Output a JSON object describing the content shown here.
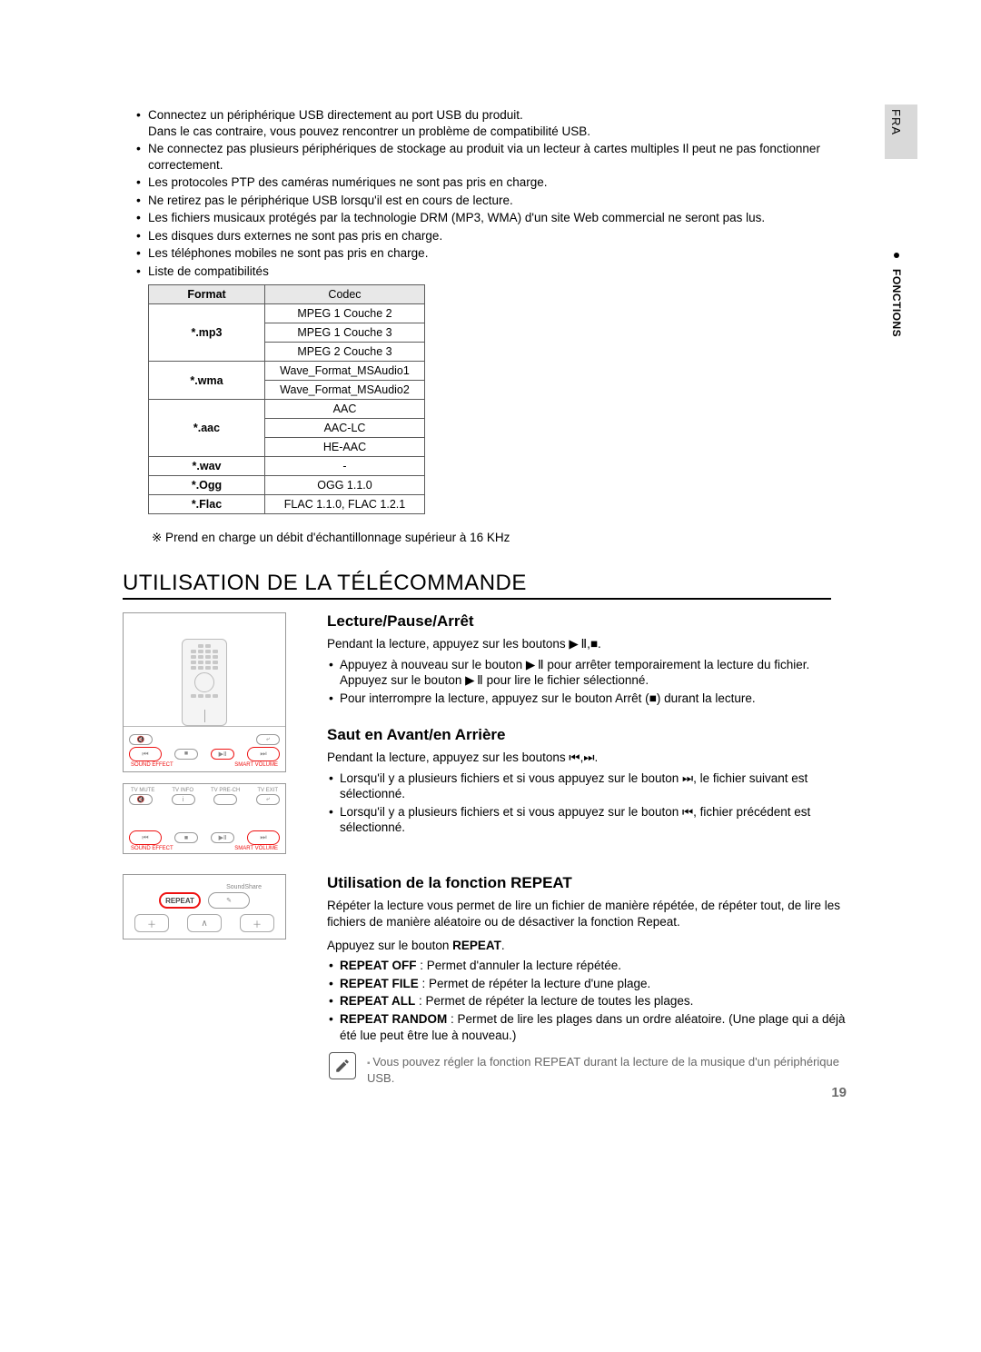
{
  "side": {
    "lang": "FRA",
    "section": "FONCTIONS"
  },
  "top_bullets": [
    "Connectez un périphérique USB directement au port USB du produit.\nDans le cas contraire, vous pouvez rencontrer un problème de compatibilité USB.",
    "Ne connectez pas plusieurs périphériques de stockage au produit via un lecteur à cartes multiples Il peut ne pas fonctionner correctement.",
    "Les protocoles PTP des caméras numériques ne sont pas pris en charge.",
    "Ne retirez pas le périphérique USB lorsqu'il est en cours de lecture.",
    "Les fichiers musicaux protégés par la technologie DRM (MP3, WMA) d'un site Web commercial ne seront pas lus.",
    "Les disques durs externes ne sont pas pris en charge.",
    "Les téléphones mobiles ne sont pas pris en charge.",
    "Liste de compatibilités"
  ],
  "table": {
    "headers": {
      "format": "Format",
      "codec": "Codec"
    },
    "rows": [
      {
        "format": "*.mp3",
        "codecs": [
          "MPEG 1 Couche 2",
          "MPEG 1 Couche 3",
          "MPEG 2 Couche 3"
        ]
      },
      {
        "format": "*.wma",
        "codecs": [
          "Wave_Format_MSAudio1",
          "Wave_Format_MSAudio2"
        ]
      },
      {
        "format": "*.aac",
        "codecs": [
          "AAC",
          "AAC-LC",
          "HE-AAC"
        ]
      },
      {
        "format": "*.wav",
        "codecs": [
          "-"
        ]
      },
      {
        "format": "*.Ogg",
        "codecs": [
          "OGG 1.1.0"
        ]
      },
      {
        "format": "*.Flac",
        "codecs": [
          "FLAC 1.1.0, FLAC 1.2.1"
        ]
      }
    ]
  },
  "footnote": "※ Prend en charge un débit d'échantillonnage supérieur à 16 KHz",
  "h1": "UTILISATION DE LA TÉLÉCOMMANDE",
  "zoom_labels": {
    "left": "SOUND EFFECT",
    "right": "SMART VOLUME"
  },
  "tv_labels": {
    "a": "TV MUTE",
    "b": "TV INFO",
    "c": "TV PRE-CH",
    "d": "TV EXIT"
  },
  "repeat_img": {
    "soundshare": "SoundShare",
    "repeat": "REPEAT"
  },
  "sect1": {
    "title": "Lecture/Pause/Arrêt",
    "lead": "Pendant la lecture, appuyez sur les boutons ▶ Ⅱ,■.",
    "items": [
      "Appuyez à nouveau sur le bouton ▶ Ⅱ pour arrêter temporairement la lecture du fichier.\nAppuyez sur le bouton ▶ Ⅱ pour lire le fichier sélectionné.",
      "Pour interrompre la lecture, appuyez sur le bouton Arrêt (■) durant la lecture."
    ]
  },
  "sect2": {
    "title": "Saut en Avant/en Arrière",
    "lead": "Pendant la lecture, appuyez sur les boutons ⏮,⏭.",
    "items": [
      "Lorsqu'il y a plusieurs fichiers et si vous appuyez sur le bouton ⏭, le fichier suivant est sélectionné.",
      "Lorsqu'il y a plusieurs fichiers et si vous appuyez sur le bouton ⏮, fichier précédent est sélectionné."
    ]
  },
  "sect3": {
    "title": "Utilisation de la fonction REPEAT",
    "lead": "Répéter la lecture vous permet de lire un fichier de manière répétée, de répéter tout, de lire les fichiers de manière aléatoire ou de désactiver la fonction Repeat.",
    "press": "Appuyez sur le bouton ",
    "press_bold": "REPEAT",
    "items": [
      {
        "b": "REPEAT OFF",
        "t": " : Permet d'annuler la lecture répétée."
      },
      {
        "b": "REPEAT FILE",
        "t": " : Permet de répéter la lecture d'une plage."
      },
      {
        "b": "REPEAT ALL",
        "t": " : Permet de répéter la lecture de toutes les plages."
      },
      {
        "b": "REPEAT RANDOM",
        "t": " : Permet de lire les plages dans un ordre aléatoire. (Une plage qui a déjà été lue peut être lue à nouveau.)"
      }
    ],
    "note": "Vous pouvez régler la fonction REPEAT durant la lecture de la musique d'un périphérique USB."
  },
  "page_num": "19"
}
